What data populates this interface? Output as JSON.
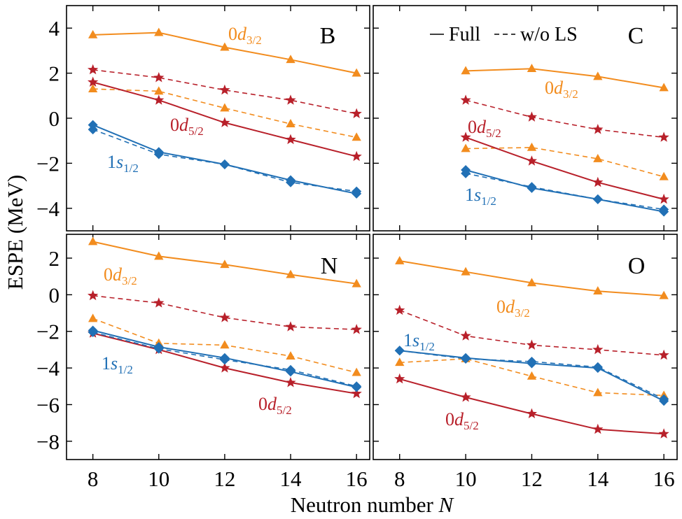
{
  "colors": {
    "d32": "#f28c1e",
    "d52": "#b8202a",
    "s12": "#2170b5"
  },
  "legend": {
    "full_label": "Full",
    "wols_label": "w/o LS"
  },
  "axes": {
    "xlabel_prefix": "Neutron number ",
    "xlabel_var": "N",
    "ylabel": "ESPE (MeV)"
  },
  "orbital_labels": {
    "d32": {
      "lead": "0",
      "var": "d",
      "sub": "3/2"
    },
    "d52": {
      "lead": "0",
      "var": "d",
      "sub": "5/2"
    },
    "s12": {
      "lead": "1",
      "var": "s",
      "sub": "1/2"
    }
  },
  "chart_data": [
    {
      "type": "line",
      "panel": "B",
      "x": [
        8,
        10,
        12,
        14,
        16
      ],
      "xlim": [
        7.2,
        16.4
      ],
      "ylim": [
        -5,
        5
      ],
      "yticks": [
        4,
        2,
        0,
        -2,
        -4
      ],
      "xticks": [
        8,
        10,
        12,
        14,
        16
      ],
      "series": [
        {
          "orbital": "d32",
          "style": "full",
          "marker": "triangle",
          "x": [
            8,
            10,
            12,
            14,
            16
          ],
          "values": [
            3.7,
            3.8,
            3.15,
            2.6,
            2.0
          ]
        },
        {
          "orbital": "d32",
          "style": "wols",
          "marker": "triangle",
          "x": [
            8,
            10,
            12,
            14,
            16
          ],
          "values": [
            1.3,
            1.2,
            0.45,
            -0.25,
            -0.85
          ]
        },
        {
          "orbital": "d52",
          "style": "full",
          "marker": "star",
          "x": [
            8,
            10,
            12,
            14,
            16
          ],
          "values": [
            1.6,
            0.8,
            -0.2,
            -0.95,
            -1.7
          ]
        },
        {
          "orbital": "d52",
          "style": "wols",
          "marker": "star",
          "x": [
            8,
            10,
            12,
            14,
            16
          ],
          "values": [
            2.15,
            1.8,
            1.25,
            0.8,
            0.2
          ]
        },
        {
          "orbital": "s12",
          "style": "full",
          "marker": "diamond",
          "x": [
            8,
            10,
            12,
            14,
            16
          ],
          "values": [
            -0.3,
            -1.5,
            -2.05,
            -2.75,
            -3.35
          ]
        },
        {
          "orbital": "s12",
          "style": "wols",
          "marker": "diamond",
          "x": [
            8,
            10,
            12,
            14,
            16
          ],
          "values": [
            -0.5,
            -1.6,
            -2.05,
            -2.85,
            -3.25
          ]
        }
      ]
    },
    {
      "type": "line",
      "panel": "C",
      "x": [
        8,
        10,
        12,
        14,
        16
      ],
      "xlim": [
        7.2,
        16.4
      ],
      "ylim": [
        -5,
        5
      ],
      "yticks": [
        4,
        2,
        0,
        -2,
        -4
      ],
      "xticks": [
        8,
        10,
        12,
        14,
        16
      ],
      "series": [
        {
          "orbital": "d32",
          "style": "full",
          "marker": "triangle",
          "x": [
            10,
            12,
            14,
            16
          ],
          "values": [
            2.1,
            2.2,
            1.85,
            1.35
          ]
        },
        {
          "orbital": "d32",
          "style": "wols",
          "marker": "triangle",
          "x": [
            10,
            12,
            14,
            16
          ],
          "values": [
            -1.35,
            -1.3,
            -1.8,
            -2.6
          ]
        },
        {
          "orbital": "d52",
          "style": "full",
          "marker": "star",
          "x": [
            10,
            12,
            14,
            16
          ],
          "values": [
            -0.85,
            -1.9,
            -2.85,
            -3.6
          ]
        },
        {
          "orbital": "d52",
          "style": "wols",
          "marker": "star",
          "x": [
            10,
            12,
            14,
            16
          ],
          "values": [
            0.8,
            0.05,
            -0.5,
            -0.85
          ]
        },
        {
          "orbital": "s12",
          "style": "full",
          "marker": "diamond",
          "x": [
            10,
            12,
            14,
            16
          ],
          "values": [
            -2.3,
            -3.1,
            -3.6,
            -4.15
          ]
        },
        {
          "orbital": "s12",
          "style": "wols",
          "marker": "diamond",
          "x": [
            10,
            12,
            14,
            16
          ],
          "values": [
            -2.45,
            -3.05,
            -3.6,
            -4.05
          ]
        }
      ]
    },
    {
      "type": "line",
      "panel": "N",
      "x": [
        8,
        10,
        12,
        14,
        16
      ],
      "xlim": [
        7.2,
        16.4
      ],
      "ylim": [
        -9,
        3.3
      ],
      "yticks": [
        2,
        0,
        -2,
        -4,
        -6,
        -8
      ],
      "xticks": [
        8,
        10,
        12,
        14,
        16
      ],
      "series": [
        {
          "orbital": "d32",
          "style": "full",
          "marker": "triangle",
          "x": [
            8,
            10,
            12,
            14,
            16
          ],
          "values": [
            2.9,
            2.1,
            1.65,
            1.1,
            0.6
          ]
        },
        {
          "orbital": "d32",
          "style": "wols",
          "marker": "triangle",
          "x": [
            8,
            10,
            12,
            14,
            16
          ],
          "values": [
            -1.3,
            -2.65,
            -2.75,
            -3.35,
            -4.25
          ]
        },
        {
          "orbital": "d52",
          "style": "full",
          "marker": "star",
          "x": [
            8,
            10,
            12,
            14,
            16
          ],
          "values": [
            -2.1,
            -3.0,
            -4.0,
            -4.8,
            -5.4
          ]
        },
        {
          "orbital": "d52",
          "style": "wols",
          "marker": "star",
          "x": [
            8,
            10,
            12,
            14,
            16
          ],
          "values": [
            -0.05,
            -0.45,
            -1.25,
            -1.75,
            -1.9
          ]
        },
        {
          "orbital": "s12",
          "style": "full",
          "marker": "diamond",
          "x": [
            8,
            10,
            12,
            14,
            16
          ],
          "values": [
            -1.95,
            -2.85,
            -3.45,
            -4.2,
            -5.05
          ]
        },
        {
          "orbital": "s12",
          "style": "wols",
          "marker": "diamond",
          "x": [
            8,
            10,
            12,
            14,
            16
          ],
          "values": [
            -2.05,
            -2.95,
            -3.55,
            -4.1,
            -5.0
          ]
        }
      ]
    },
    {
      "type": "line",
      "panel": "O",
      "x": [
        8,
        10,
        12,
        14,
        16
      ],
      "xlim": [
        7.2,
        16.4
      ],
      "ylim": [
        -9,
        3.3
      ],
      "yticks": [
        2,
        0,
        -2,
        -4,
        -6,
        -8
      ],
      "xticks": [
        8,
        10,
        12,
        14,
        16
      ],
      "series": [
        {
          "orbital": "d32",
          "style": "full",
          "marker": "triangle",
          "x": [
            8,
            10,
            12,
            14,
            16
          ],
          "values": [
            1.85,
            1.25,
            0.65,
            0.2,
            -0.05
          ]
        },
        {
          "orbital": "d32",
          "style": "wols",
          "marker": "triangle",
          "x": [
            8,
            10,
            12,
            14,
            16
          ],
          "values": [
            -3.7,
            -3.5,
            -4.45,
            -5.35,
            -5.5
          ]
        },
        {
          "orbital": "d52",
          "style": "full",
          "marker": "star",
          "x": [
            8,
            10,
            12,
            14,
            16
          ],
          "values": [
            -4.6,
            -5.6,
            -6.5,
            -7.35,
            -7.6
          ]
        },
        {
          "orbital": "d52",
          "style": "wols",
          "marker": "star",
          "x": [
            8,
            10,
            12,
            14,
            16
          ],
          "values": [
            -0.85,
            -2.25,
            -2.75,
            -3.0,
            -3.3
          ]
        },
        {
          "orbital": "s12",
          "style": "full",
          "marker": "diamond",
          "x": [
            8,
            10,
            12,
            14,
            16
          ],
          "values": [
            -3.05,
            -3.45,
            -3.75,
            -4.0,
            -5.8
          ]
        },
        {
          "orbital": "s12",
          "style": "wols",
          "marker": "diamond",
          "x": [
            8,
            10,
            12,
            14,
            16
          ],
          "values": [
            -3.05,
            -3.5,
            -3.65,
            -3.95,
            -5.7
          ]
        }
      ]
    }
  ]
}
